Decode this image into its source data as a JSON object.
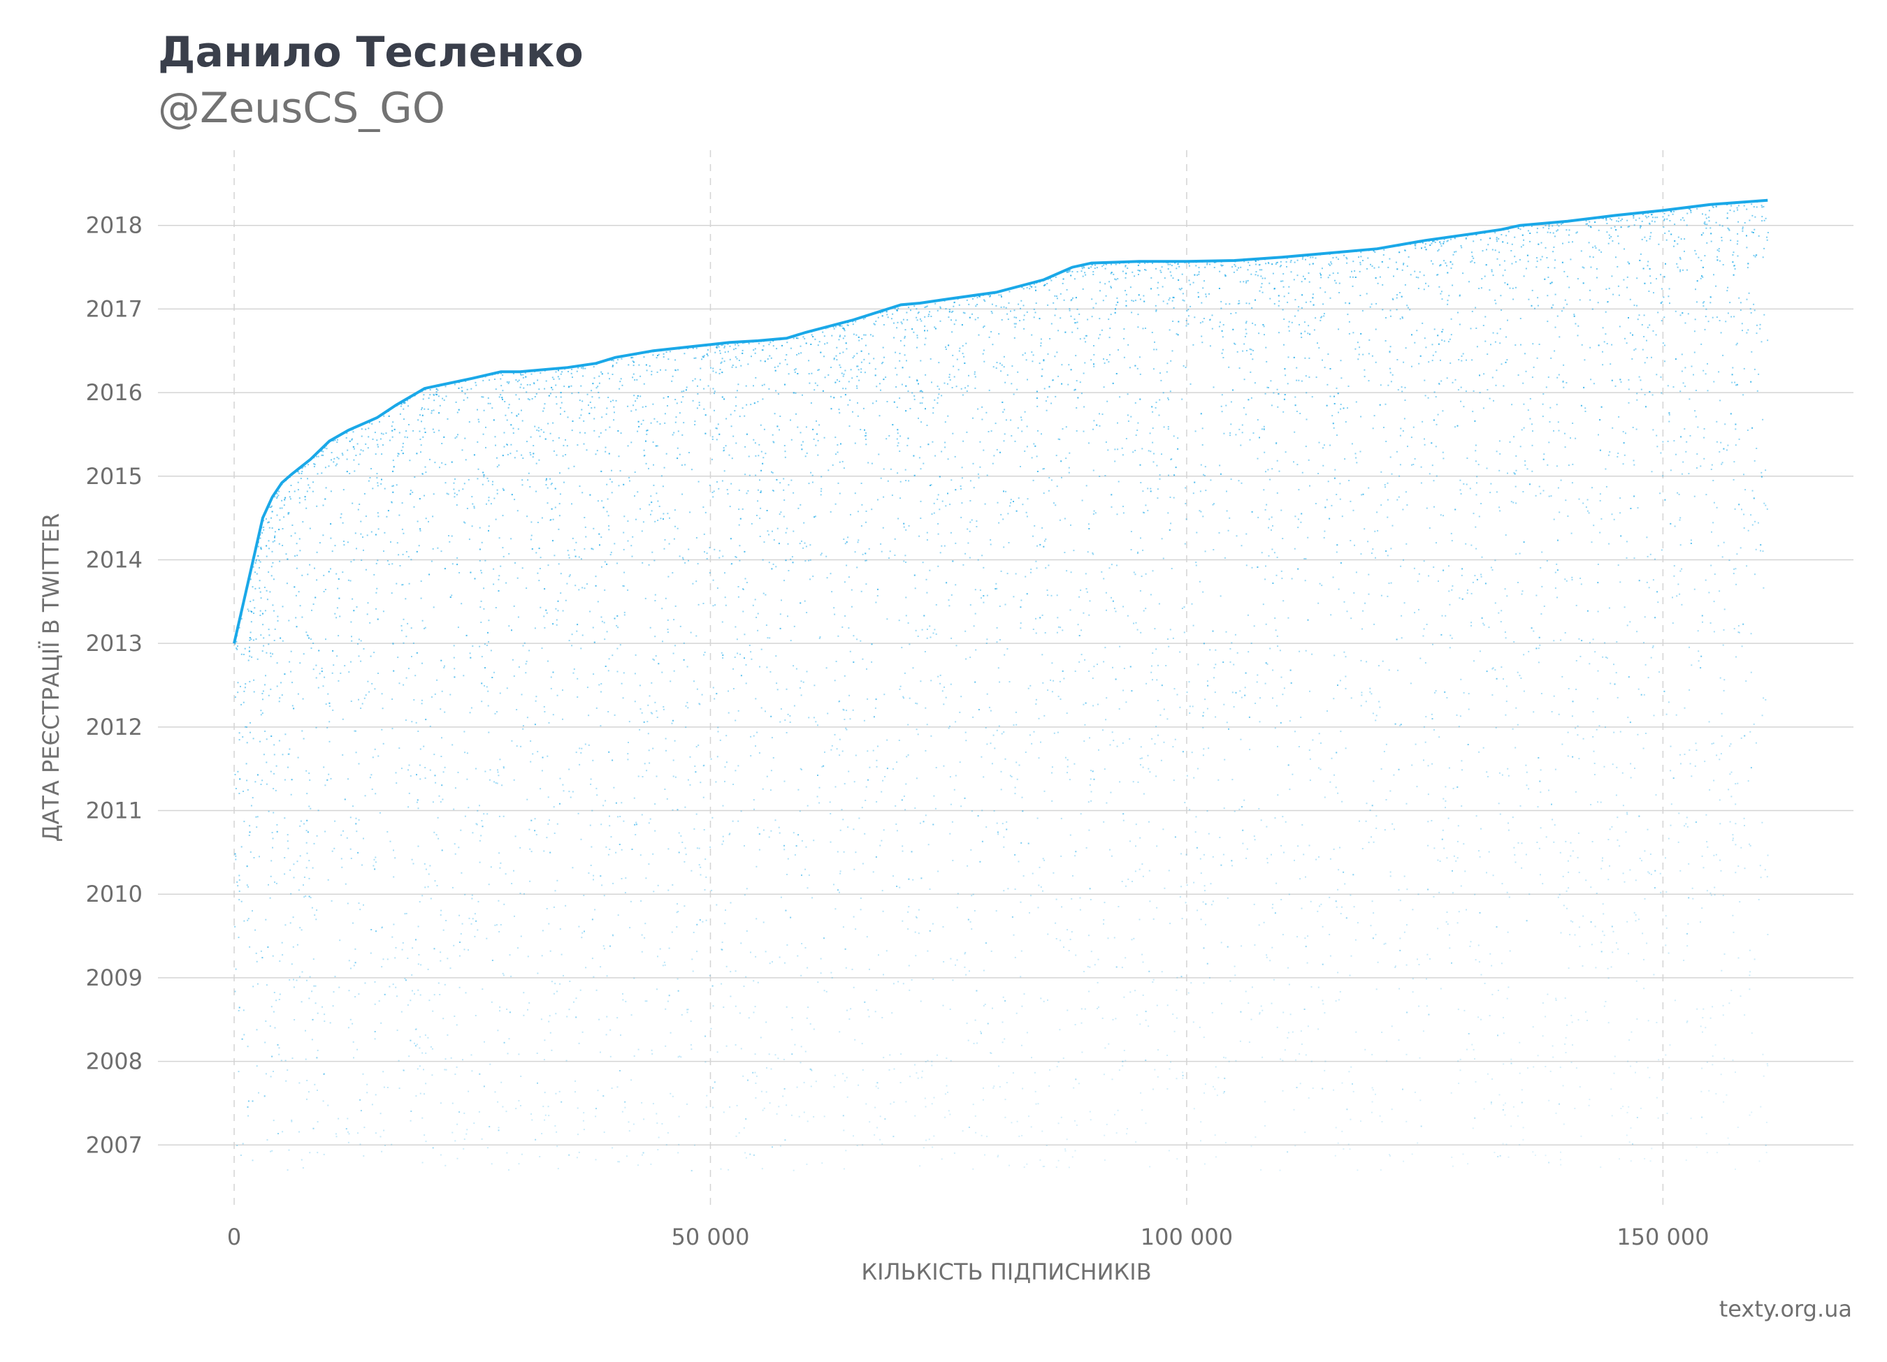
{
  "header": {
    "title": "Данило Тесленко",
    "subtitle": "@ZeusCS_GO"
  },
  "footer": {
    "credit": "texty.org.ua"
  },
  "colors": {
    "accent": "#1aa8e8",
    "grid": "#d4d4d4",
    "text": "#6e6e6e",
    "title": "#3a3f4b"
  },
  "chart_data": {
    "type": "scatter",
    "xlabel": "КІЛЬКІСТЬ ПІДПИСНИКІВ",
    "ylabel": "ДАТА РЕЄСТРАЦІЇ В TWITTER",
    "xlim": [
      -8000,
      170000
    ],
    "ylim": [
      2006.2,
      2018.9
    ],
    "x_ticks": [
      0,
      50000,
      100000,
      150000
    ],
    "x_tick_labels": [
      "0",
      "50 000",
      "100 000",
      "150 000"
    ],
    "y_ticks": [
      2007,
      2008,
      2009,
      2010,
      2011,
      2012,
      2013,
      2014,
      2015,
      2016,
      2017,
      2018
    ],
    "y_tick_labels": [
      "2007",
      "2008",
      "2009",
      "2010",
      "2011",
      "2012",
      "2013",
      "2014",
      "2015",
      "2016",
      "2017",
      "2018"
    ],
    "grid": {
      "horizontal": "solid",
      "vertical": "dashed"
    },
    "series": [
      {
        "color": "#1aa8e8",
        "description_points": "dense cloud of follower registration dates beneath an upper envelope",
        "upper_envelope": {
          "x": [
            0,
            1000,
            2000,
            3000,
            4000,
            5000,
            6000,
            8000,
            10000,
            12000,
            15000,
            17000,
            20000,
            25000,
            28000,
            30000,
            35000,
            38000,
            40000,
            44000,
            48000,
            52000,
            55000,
            58000,
            60000,
            65000,
            70000,
            72000,
            75000,
            80000,
            85000,
            88000,
            90000,
            95000,
            100000,
            105000,
            110000,
            115000,
            120000,
            125000,
            130000,
            133000,
            135000,
            140000,
            145000,
            150000,
            155000,
            161000
          ],
          "y": [
            2013.0,
            2013.5,
            2014.0,
            2014.5,
            2014.75,
            2014.92,
            2015.02,
            2015.2,
            2015.42,
            2015.55,
            2015.7,
            2015.85,
            2016.05,
            2016.17,
            2016.25,
            2016.25,
            2016.3,
            2016.35,
            2016.42,
            2016.5,
            2016.55,
            2016.6,
            2016.62,
            2016.65,
            2016.72,
            2016.87,
            2017.05,
            2017.07,
            2017.12,
            2017.2,
            2017.35,
            2017.5,
            2017.55,
            2017.57,
            2017.57,
            2017.58,
            2017.62,
            2017.67,
            2017.72,
            2017.82,
            2017.9,
            2017.95,
            2018.0,
            2018.05,
            2018.12,
            2018.18,
            2018.25,
            2018.3
          ]
        }
      }
    ]
  }
}
